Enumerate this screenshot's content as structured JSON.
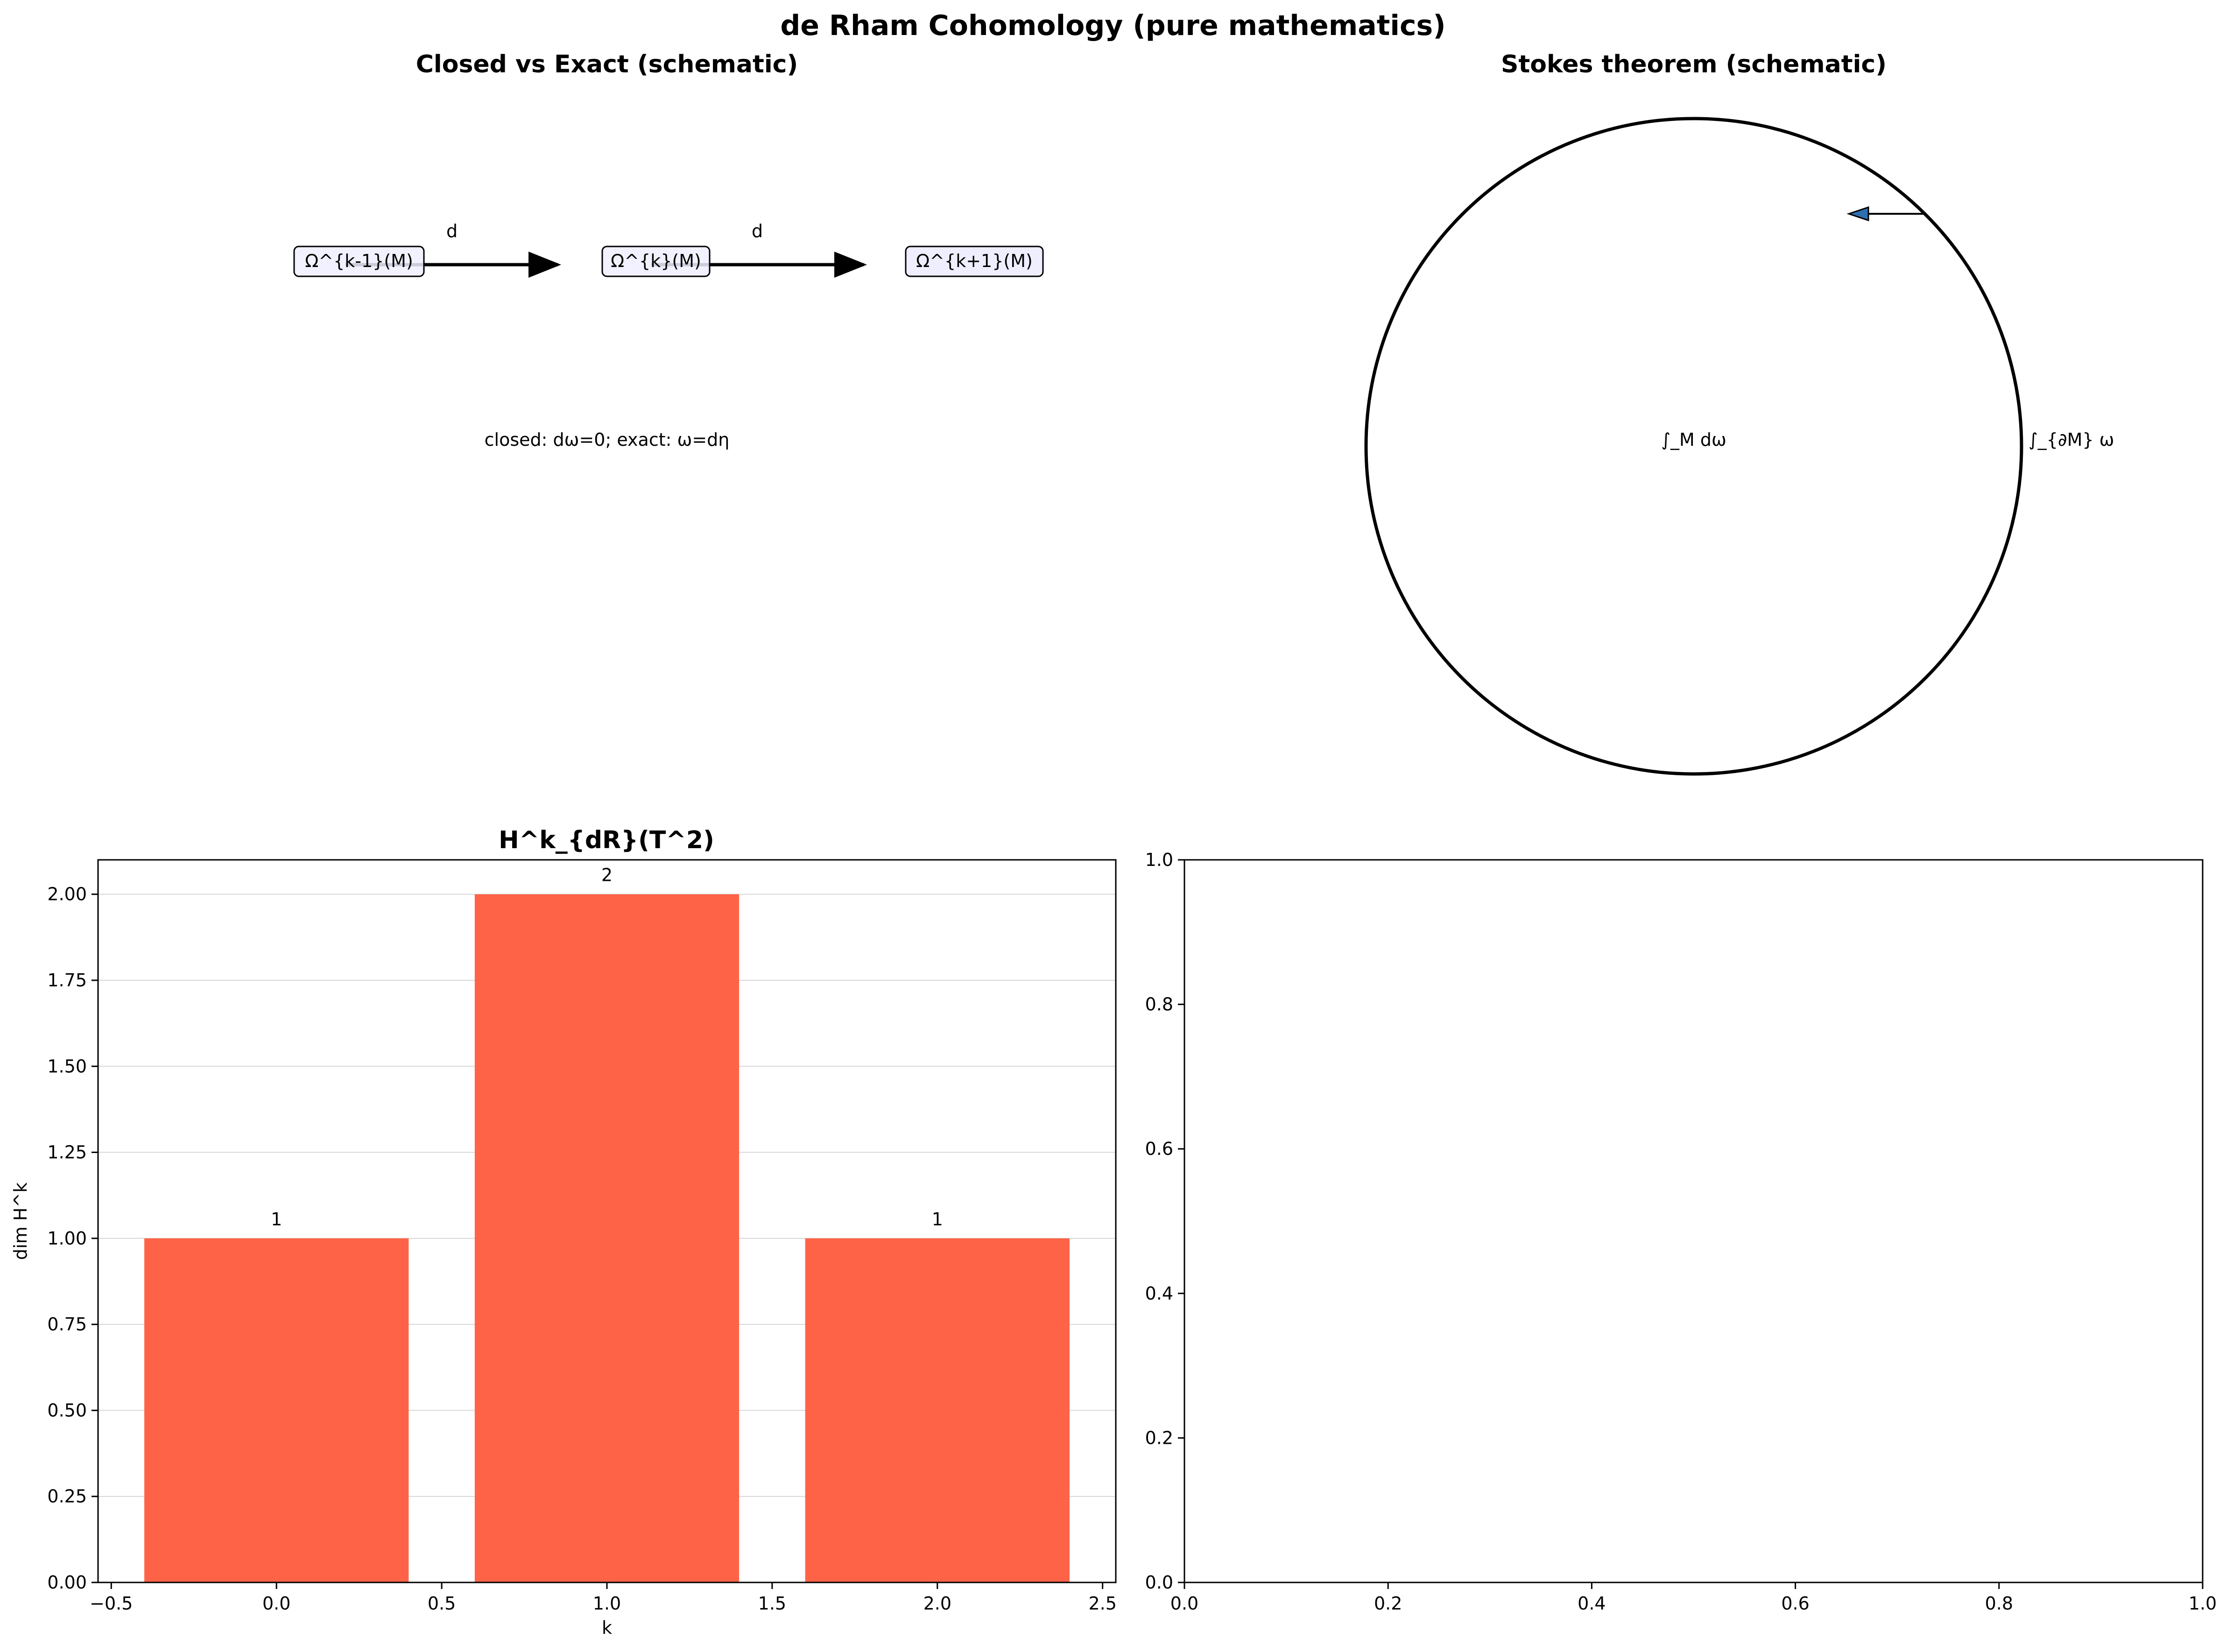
{
  "figure": {
    "suptitle": "de Rham Cohomology (pure mathematics)"
  },
  "panels": {
    "closed_exact": {
      "title": "Closed vs Exact (schematic)",
      "nodes": [
        "Ω^{k-1}(M)",
        "Ω^{k}(M)",
        "Ω^{k+1}(M)"
      ],
      "arrow_labels": [
        "d",
        "d"
      ],
      "caption": "closed: dω=0; exact: ω=dη",
      "box_fill": "#eeeeff",
      "box_stroke": "#000000"
    },
    "stokes": {
      "title": "Stokes theorem (schematic)",
      "interior_label": "∫_M dω",
      "boundary_label": "∫_{∂M} ω",
      "arrow_color": "#2f6fb0"
    },
    "empty_axes": {
      "x_ticks": [
        "0.0",
        "0.2",
        "0.4",
        "0.6",
        "0.8",
        "1.0"
      ],
      "y_ticks": [
        "0.0",
        "0.2",
        "0.4",
        "0.6",
        "0.8",
        "1.0"
      ],
      "xlim": [
        0,
        1
      ],
      "ylim": [
        0,
        1
      ]
    }
  },
  "chart_data": {
    "type": "bar",
    "title": "H^k_{dR}(T^2)",
    "xlabel": "k",
    "ylabel": "dim H^k",
    "x": [
      0,
      1,
      2
    ],
    "values": [
      1,
      2,
      1
    ],
    "bar_labels": [
      "1",
      "2",
      "1"
    ],
    "xlim": [
      -0.54,
      2.54
    ],
    "ylim": [
      0,
      2.1
    ],
    "x_ticks": [
      -0.5,
      0.0,
      0.5,
      1.0,
      1.5,
      2.0,
      2.5
    ],
    "x_tick_labels": [
      "−0.5",
      "0.0",
      "0.5",
      "1.0",
      "1.5",
      "2.0",
      "2.5"
    ],
    "y_ticks": [
      0,
      0.25,
      0.5,
      0.75,
      1.0,
      1.25,
      1.5,
      1.75,
      2.0
    ],
    "y_tick_labels": [
      "0.00",
      "0.25",
      "0.50",
      "0.75",
      "1.00",
      "1.25",
      "1.50",
      "1.75",
      "2.00"
    ],
    "grid": "y",
    "bar_color": "#ff6347"
  }
}
